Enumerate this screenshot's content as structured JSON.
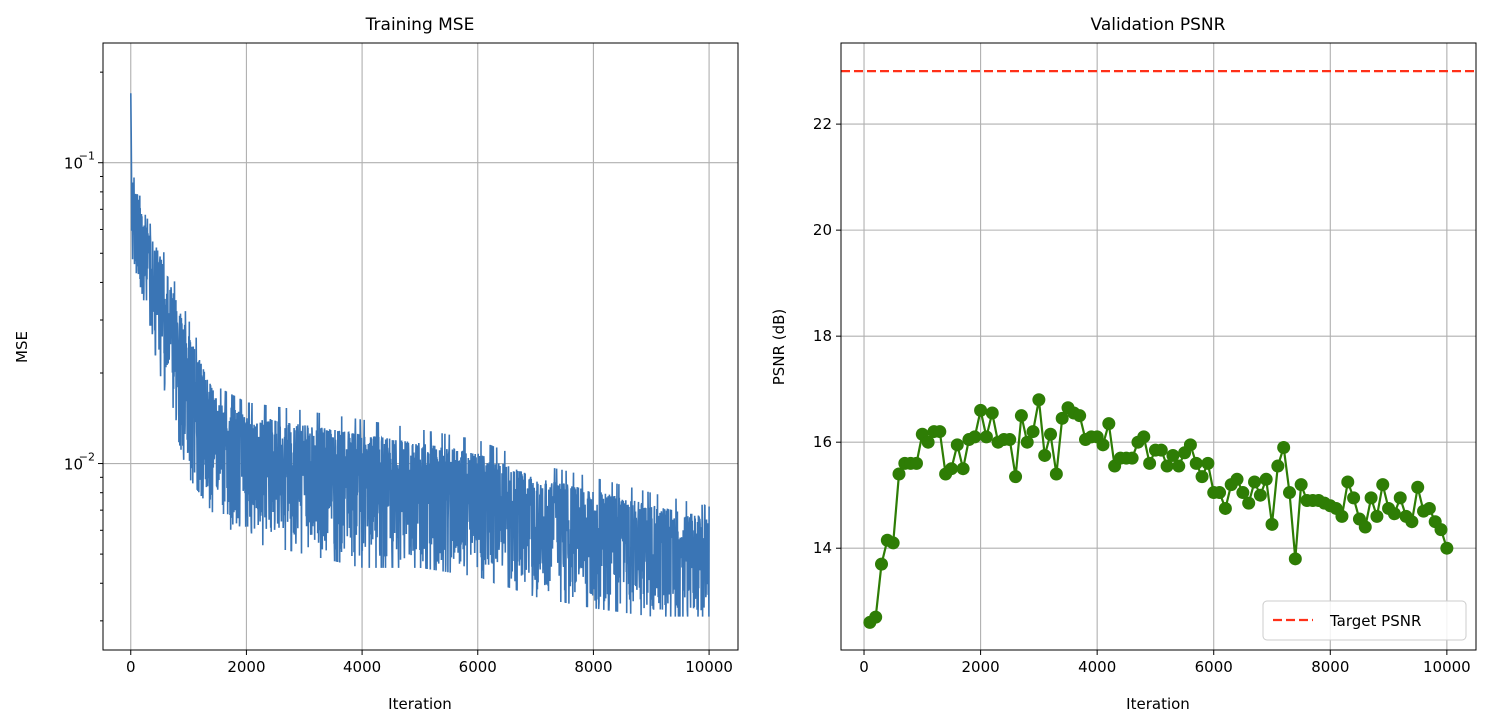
{
  "colors": {
    "mse": "#3a75b5",
    "psnr": "#2e7d05",
    "target": "#ff3018",
    "grid": "#b0b0b0"
  },
  "chart_data": [
    {
      "type": "line",
      "title": "Training MSE",
      "xlabel": "Iteration",
      "ylabel": "MSE",
      "yscale": "log",
      "xlim": [
        -480,
        10500
      ],
      "ylim": [
        0.0024,
        0.25
      ],
      "xticks": [
        0,
        2000,
        4000,
        6000,
        8000,
        10000
      ],
      "xtick_labels": [
        "0",
        "2000",
        "4000",
        "6000",
        "8000",
        "10000"
      ],
      "yticks": [
        0.01,
        0.1
      ],
      "ytick_labels": [
        {
          "base": "10",
          "exp": "−2"
        },
        {
          "base": "10",
          "exp": "−1"
        }
      ],
      "grid": true,
      "series": [
        {
          "name": "MSE",
          "note": "noisy per-iteration series, summarized by envelope",
          "envelope": {
            "x": [
              0,
              50,
              200,
              500,
              1000,
              1500,
              2000,
              3000,
              4000,
              5000,
              6000,
              7000,
              8000,
              9000,
              10000
            ],
            "low": [
              0.04,
              0.04,
              0.035,
              0.02,
              0.009,
              0.0065,
              0.0055,
              0.005,
              0.0045,
              0.0045,
              0.0042,
              0.0036,
              0.0033,
              0.0031,
              0.0031
            ],
            "high": [
              0.2,
              0.1,
              0.07,
              0.055,
              0.03,
              0.018,
              0.016,
              0.015,
              0.014,
              0.013,
              0.012,
              0.01,
              0.009,
              0.008,
              0.0072
            ]
          }
        }
      ]
    },
    {
      "type": "line",
      "title": "Validation PSNR",
      "xlabel": "Iteration",
      "ylabel": "PSNR (dB)",
      "xlim": [
        -395,
        10500
      ],
      "ylim": [
        12.08,
        23.53
      ],
      "xticks": [
        0,
        2000,
        4000,
        6000,
        8000,
        10000
      ],
      "xtick_labels": [
        "0",
        "2000",
        "4000",
        "6000",
        "8000",
        "10000"
      ],
      "yticks": [
        14,
        16,
        18,
        20,
        22
      ],
      "ytick_labels": [
        "14",
        "16",
        "18",
        "20",
        "22"
      ],
      "grid": true,
      "legend": {
        "placement": "bottom-right",
        "entries": [
          "Target PSNR"
        ]
      },
      "target": {
        "name": "Target PSNR",
        "value": 23
      },
      "series": [
        {
          "name": "PSNR",
          "x": [
            100,
            200,
            300,
            400,
            500,
            600,
            700,
            800,
            900,
            1000,
            1100,
            1200,
            1300,
            1400,
            1500,
            1600,
            1700,
            1800,
            1900,
            2000,
            2100,
            2200,
            2300,
            2400,
            2500,
            2600,
            2700,
            2800,
            2900,
            3000,
            3100,
            3200,
            3300,
            3400,
            3500,
            3600,
            3700,
            3800,
            3900,
            4000,
            4100,
            4200,
            4300,
            4400,
            4500,
            4600,
            4700,
            4800,
            4900,
            5000,
            5100,
            5200,
            5300,
            5400,
            5500,
            5600,
            5700,
            5800,
            5900,
            6000,
            6100,
            6200,
            6300,
            6400,
            6500,
            6600,
            6700,
            6800,
            6900,
            7000,
            7100,
            7200,
            7300,
            7400,
            7500,
            7600,
            7700,
            7800,
            7900,
            8000,
            8100,
            8200,
            8300,
            8400,
            8500,
            8600,
            8700,
            8800,
            8900,
            9000,
            9100,
            9200,
            9300,
            9400,
            9500,
            9600,
            9700,
            9800,
            9900,
            10000
          ],
          "y": [
            12.6,
            12.7,
            13.7,
            14.15,
            14.1,
            15.4,
            15.6,
            15.6,
            15.6,
            16.15,
            16.0,
            16.2,
            16.2,
            15.4,
            15.5,
            15.95,
            15.5,
            16.05,
            16.1,
            16.6,
            16.1,
            16.55,
            16.0,
            16.05,
            16.05,
            15.35,
            16.5,
            16.0,
            16.2,
            16.8,
            15.75,
            16.15,
            15.4,
            16.45,
            16.65,
            16.55,
            16.5,
            16.05,
            16.1,
            16.1,
            15.95,
            16.35,
            15.55,
            15.7,
            15.7,
            15.7,
            16.0,
            16.1,
            15.6,
            15.85,
            15.85,
            15.55,
            15.75,
            15.55,
            15.8,
            15.95,
            15.6,
            15.35,
            15.6,
            15.05,
            15.05,
            14.75,
            15.2,
            15.3,
            15.05,
            14.85,
            15.25,
            15.0,
            15.3,
            14.45,
            15.55,
            15.9,
            15.05,
            13.8,
            15.2,
            14.9,
            14.9,
            14.9,
            14.85,
            14.8,
            14.75,
            14.6,
            15.25,
            14.95,
            14.55,
            14.4,
            14.95,
            14.6,
            15.2,
            14.75,
            14.65,
            14.95,
            14.6,
            14.5,
            15.15,
            14.7,
            14.75,
            14.5,
            14.35,
            14.0
          ]
        }
      ]
    }
  ]
}
